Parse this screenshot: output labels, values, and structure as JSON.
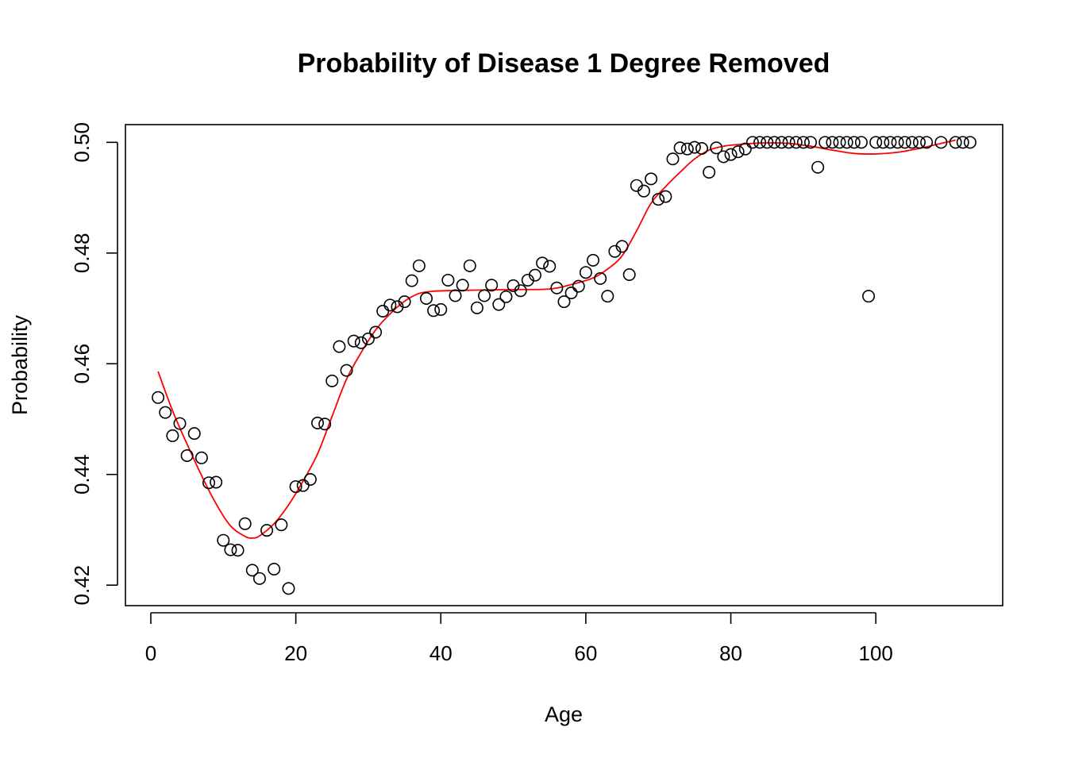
{
  "chart_data": {
    "type": "scatter",
    "title": "Probability of Disease 1 Degree Removed",
    "xlabel": "Age",
    "ylabel": "Probability",
    "xlim": [
      -3.5,
      117.5
    ],
    "ylim": [
      0.4163,
      0.5032
    ],
    "xticks": [
      0,
      20,
      40,
      60,
      80,
      100
    ],
    "yticks": [
      0.42,
      0.44,
      0.46,
      0.48,
      0.5
    ],
    "xtick_labels": [
      "0",
      "20",
      "40",
      "60",
      "80",
      "100"
    ],
    "ytick_labels": [
      "0.42",
      "0.44",
      "0.46",
      "0.48",
      "0.50"
    ],
    "grid": false,
    "legend": "none",
    "colors": {
      "points": "#000000",
      "fit": "#ff0000"
    },
    "series": [
      {
        "kind": "points",
        "x": [
          1,
          2,
          3,
          4,
          5,
          6,
          7,
          8,
          9,
          10,
          11,
          12,
          13,
          14,
          15,
          16,
          17,
          18,
          19,
          20,
          21,
          22,
          23,
          24,
          25,
          26,
          27,
          28,
          29,
          30,
          31,
          32,
          33,
          34,
          35,
          36,
          37,
          38,
          39,
          40,
          41,
          42,
          43,
          44,
          45,
          46,
          47,
          48,
          49,
          50,
          51,
          52,
          53,
          54,
          55,
          56,
          57,
          58,
          59,
          60,
          61,
          62,
          63,
          64,
          65,
          66,
          67,
          68,
          69,
          70,
          71,
          72,
          73,
          74,
          75,
          76,
          77,
          78,
          79,
          80,
          81,
          82,
          83,
          84,
          85,
          86,
          87,
          88,
          89,
          90,
          91,
          92,
          93,
          94,
          95,
          96,
          97,
          98,
          99,
          100,
          101,
          102,
          103,
          104,
          105,
          106,
          107,
          109,
          111,
          112,
          113
        ],
        "y": [
          0.4539,
          0.4512,
          0.447,
          0.4492,
          0.4434,
          0.4474,
          0.443,
          0.4385,
          0.4386,
          0.4281,
          0.4264,
          0.4263,
          0.4311,
          0.4227,
          0.4212,
          0.4299,
          0.4229,
          0.4309,
          0.4194,
          0.4378,
          0.438,
          0.4391,
          0.4493,
          0.4491,
          0.4569,
          0.4631,
          0.4588,
          0.4641,
          0.4638,
          0.4645,
          0.4657,
          0.4695,
          0.4706,
          0.4703,
          0.4712,
          0.475,
          0.4777,
          0.4718,
          0.4696,
          0.4698,
          0.4751,
          0.4723,
          0.4742,
          0.4777,
          0.4701,
          0.4723,
          0.4742,
          0.4707,
          0.4721,
          0.4741,
          0.4732,
          0.4751,
          0.476,
          0.4782,
          0.4776,
          0.4737,
          0.4712,
          0.4728,
          0.474,
          0.4765,
          0.4787,
          0.4754,
          0.4722,
          0.4803,
          0.4812,
          0.4761,
          0.4922,
          0.4912,
          0.4934,
          0.4897,
          0.4902,
          0.497,
          0.499,
          0.4988,
          0.4991,
          0.4989,
          0.4946,
          0.499,
          0.4974,
          0.4978,
          0.4983,
          0.4988,
          0.5,
          0.5,
          0.5,
          0.5,
          0.5,
          0.5,
          0.5,
          0.5,
          0.5,
          0.4955,
          0.5,
          0.5,
          0.5,
          0.5,
          0.5,
          0.5,
          0.4722,
          0.5,
          0.5,
          0.5,
          0.5,
          0.5,
          0.5,
          0.5,
          0.5,
          0.5,
          0.5,
          0.5,
          0.5
        ]
      },
      {
        "kind": "smooth-line",
        "x": [
          1,
          3,
          5,
          7,
          9,
          11,
          13,
          14,
          15,
          17,
          19,
          21,
          23,
          25,
          27,
          29,
          31,
          33,
          35,
          37,
          39,
          41,
          45,
          50,
          55,
          58,
          61,
          63,
          65,
          67,
          69,
          71,
          73,
          75,
          77,
          79,
          81,
          83,
          85,
          88,
          91,
          94,
          97,
          100,
          103,
          106,
          109,
          111
        ],
        "y": [
          0.4586,
          0.4515,
          0.4455,
          0.4398,
          0.4347,
          0.4307,
          0.4288,
          0.4285,
          0.4289,
          0.4311,
          0.4345,
          0.4388,
          0.4437,
          0.4505,
          0.4572,
          0.462,
          0.4661,
          0.469,
          0.4713,
          0.4727,
          0.4731,
          0.4732,
          0.4733,
          0.4734,
          0.4735,
          0.4743,
          0.4755,
          0.4771,
          0.4795,
          0.484,
          0.489,
          0.492,
          0.4946,
          0.497,
          0.4986,
          0.4993,
          0.4996,
          0.4998,
          0.4999,
          0.4998,
          0.4993,
          0.4986,
          0.498,
          0.4979,
          0.4982,
          0.4989,
          0.4998,
          0.5004
        ]
      }
    ]
  }
}
